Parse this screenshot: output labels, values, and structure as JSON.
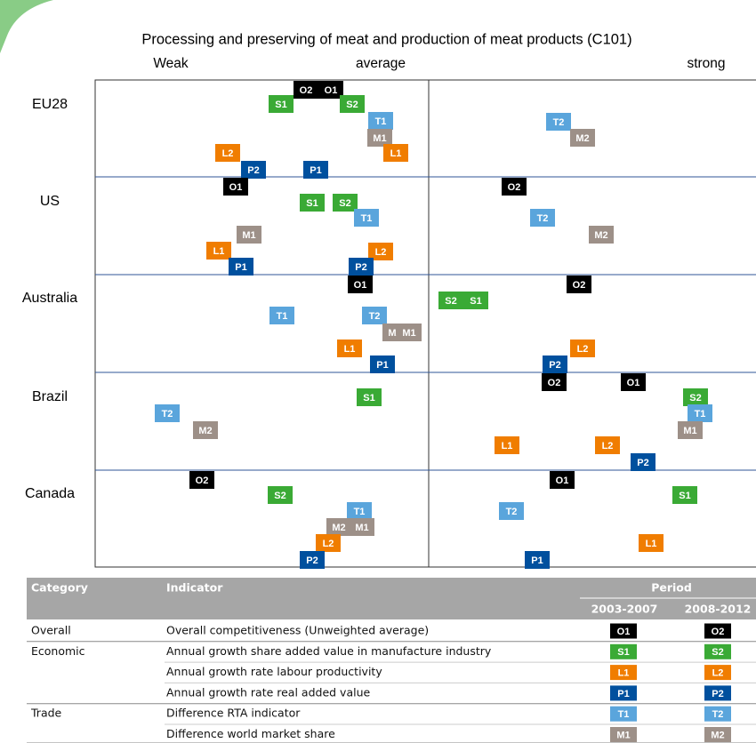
{
  "title": "Processing and preserving of meat and production of meat products (C101)",
  "scale_labels": [
    "Weak",
    "average",
    "strong"
  ],
  "rows": [
    {
      "label": "EU28",
      "markers": [
        "O2",
        "O1",
        "S1",
        "S2",
        "T1",
        "M1",
        "L2",
        "L1",
        "P2",
        "P1",
        "T2",
        "M2"
      ]
    },
    {
      "label": "US",
      "markers": [
        "O1",
        "O2",
        "S1",
        "S2",
        "T1",
        "T2",
        "M1",
        "M2",
        "L1",
        "L2",
        "P1",
        "P2"
      ]
    },
    {
      "label": "Australia",
      "markers": [
        "O1",
        "O2",
        "S2",
        "S1",
        "T1",
        "T2",
        "M2",
        "M1",
        "L1",
        "L2",
        "P1",
        "P2"
      ]
    },
    {
      "label": "Brazil",
      "markers": [
        "O2",
        "O1",
        "S1",
        "S2",
        "T2",
        "T1",
        "M2",
        "M1",
        "L1",
        "L2",
        "P2"
      ]
    },
    {
      "label": "Canada",
      "markers": [
        "O2",
        "O1",
        "S2",
        "S1",
        "T1",
        "T2",
        "M2",
        "M1",
        "L2",
        "L1",
        "P2",
        "P1"
      ]
    }
  ],
  "table": {
    "headers": {
      "category": "Category",
      "indicator": "Indicator",
      "period": "Period",
      "periods": [
        "2003-2007",
        "2008-2012"
      ]
    },
    "rows": [
      {
        "category": "Overall",
        "indicator": "Overall competitiveness (Unweighted average)",
        "codes": [
          "O1",
          "O2"
        ]
      },
      {
        "category": "Economic",
        "indicator": "Annual growth share added value in manufacture industry",
        "codes": [
          "S1",
          "S2"
        ]
      },
      {
        "indicator": "Annual growth rate labour productivity",
        "codes": [
          "L1",
          "L2"
        ]
      },
      {
        "indicator": "Annual growth rate real added value",
        "codes": [
          "P1",
          "P2"
        ]
      },
      {
        "category": "Trade",
        "indicator": "Difference RTA indicator",
        "codes": [
          "T1",
          "T2"
        ]
      },
      {
        "indicator": "Difference world market share",
        "codes": [
          "M1",
          "M2"
        ]
      }
    ]
  }
}
